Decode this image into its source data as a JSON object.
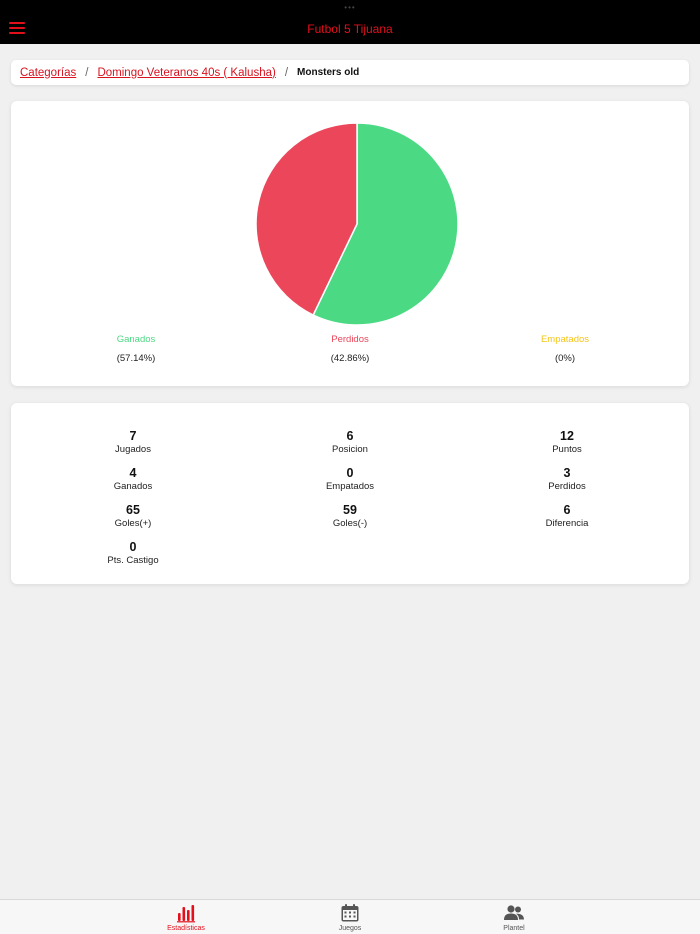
{
  "header": {
    "title": "Futbol 5 Tijuana",
    "status_dots": "•••"
  },
  "breadcrumb": {
    "items": [
      "Categorías",
      "Domingo Veteranos 40s ( Kalusha)"
    ],
    "separator": "/",
    "current": "Monsters old"
  },
  "chart_data": {
    "type": "pie",
    "title": "",
    "categories": [
      "Ganados",
      "Perdidos",
      "Empatados"
    ],
    "values": [
      57.14,
      42.86,
      0
    ],
    "labels": [
      "(57.14%)",
      "(42.86%)",
      "(0%)"
    ],
    "colors": [
      "#4cd984",
      "#eb465a",
      "#f5c518"
    ],
    "legend_position": "bottom"
  },
  "stats": [
    {
      "value": "7",
      "label": "Jugados"
    },
    {
      "value": "6",
      "label": "Posicion"
    },
    {
      "value": "12",
      "label": "Puntos"
    },
    {
      "value": "4",
      "label": "Ganados"
    },
    {
      "value": "0",
      "label": "Empatados"
    },
    {
      "value": "3",
      "label": "Perdidos"
    },
    {
      "value": "65",
      "label": "Goles(+)"
    },
    {
      "value": "59",
      "label": "Goles(-)"
    },
    {
      "value": "6",
      "label": "Diferencia"
    },
    {
      "value": "0",
      "label": "Pts. Castigo"
    }
  ],
  "tabs": [
    {
      "label": "Estadísticas",
      "icon": "bar-chart-icon",
      "active": true
    },
    {
      "label": "Juegos",
      "icon": "calendar-icon",
      "active": false
    },
    {
      "label": "Plantel",
      "icon": "people-icon",
      "active": false
    }
  ],
  "colors": {
    "accent": "#e3101c",
    "won": "#4cd984",
    "lost": "#eb465a",
    "tied": "#f5c518"
  }
}
